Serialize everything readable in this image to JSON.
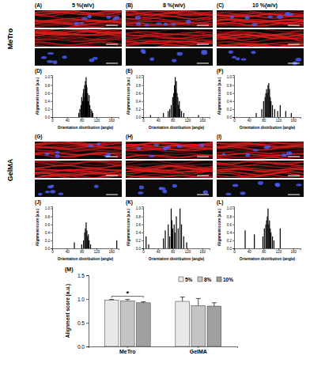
{
  "figure": {
    "column_titles": [
      "5 %(w/v)",
      "8 %(w/v)",
      "10 %(w/v)"
    ],
    "rows": [
      {
        "label": "MeTro",
        "panels": [
          "(A)",
          "(B)",
          "(C)"
        ]
      },
      {
        "label": "GelMA",
        "panels": [
          "(G)",
          "(H)",
          "(I)"
        ]
      }
    ]
  },
  "chart_data": [
    {
      "type": "bar",
      "title": "(D)",
      "xlabel": "Orientation distribution (angle)",
      "ylabel": "Alignment score (a.u.)",
      "color": "#000000",
      "x": [
        72,
        75,
        78,
        80,
        82,
        84,
        85,
        86,
        88,
        89,
        90,
        91,
        92,
        93,
        94,
        95,
        96,
        98,
        100,
        102,
        105,
        108,
        110
      ],
      "values": [
        0.1,
        0.2,
        0.3,
        0.5,
        0.4,
        0.6,
        0.7,
        0.5,
        0.8,
        0.6,
        0.9,
        0.7,
        1.0,
        0.8,
        0.75,
        0.5,
        0.6,
        0.4,
        0.55,
        0.3,
        0.2,
        0.15,
        0.1
      ],
      "xlim": [
        0,
        180
      ],
      "xticks": [
        0,
        40,
        80,
        120,
        160
      ],
      "ylim": [
        0,
        1.05
      ],
      "yticks": [
        {
          "value": 0,
          "label": "0.0"
        },
        0.2,
        0.4,
        0.6,
        0.8,
        {
          "value": 1,
          "label": "1.0"
        }
      ]
    },
    {
      "type": "bar",
      "title": "(E)",
      "xlabel": "Orientation distribution (angle)",
      "ylabel": "Alignment score (a.u.)",
      "color": "#000000",
      "x": [
        20,
        55,
        68,
        72,
        76,
        80,
        83,
        85,
        87,
        88,
        90,
        92,
        94,
        96,
        98,
        100,
        104,
        110,
        150
      ],
      "values": [
        0.05,
        0.1,
        0.15,
        0.2,
        0.3,
        0.5,
        0.6,
        0.8,
        1.0,
        0.7,
        0.9,
        0.6,
        0.5,
        0.3,
        0.4,
        0.2,
        0.15,
        0.1,
        0.05
      ],
      "xlim": [
        0,
        180
      ],
      "xticks": [
        0,
        40,
        80,
        120,
        160
      ],
      "ylim": [
        0,
        1.05
      ],
      "yticks": [
        {
          "value": 0,
          "label": "0.0"
        },
        0.2,
        0.4,
        0.6,
        0.8,
        {
          "value": 1,
          "label": "1.0"
        }
      ]
    },
    {
      "type": "bar",
      "title": "(F)",
      "xlabel": "Orientation distribution (angle)",
      "ylabel": "Alignment score (a.u.)",
      "color": "#000000",
      "x": [
        60,
        75,
        80,
        84,
        86,
        88,
        90,
        92,
        94,
        96,
        98,
        100,
        104,
        110,
        118,
        125,
        140,
        155
      ],
      "values": [
        0.1,
        0.2,
        0.4,
        0.5,
        0.6,
        0.7,
        0.6,
        0.8,
        0.85,
        0.7,
        0.5,
        0.4,
        0.3,
        0.2,
        0.15,
        0.3,
        0.15,
        0.1
      ],
      "xlim": [
        0,
        180
      ],
      "xticks": [
        0,
        40,
        80,
        120,
        160
      ],
      "ylim": [
        0,
        1.05
      ],
      "yticks": [
        {
          "value": 0,
          "label": "0.0"
        },
        0.2,
        0.4,
        0.6,
        0.8,
        {
          "value": 1,
          "label": "1.0"
        }
      ]
    },
    {
      "type": "bar",
      "title": "(J)",
      "xlabel": "Orientation distribution (angle)",
      "ylabel": "Alignment score (a.u.)",
      "color": "#000000",
      "x": [
        60,
        80,
        85,
        88,
        90,
        92,
        94,
        96,
        98,
        100,
        104,
        175
      ],
      "values": [
        0.15,
        0.1,
        0.2,
        0.4,
        0.5,
        0.65,
        0.45,
        0.3,
        0.35,
        0.2,
        0.1,
        0.2
      ],
      "xlim": [
        0,
        180
      ],
      "xticks": [
        0,
        40,
        80,
        120,
        160
      ],
      "ylim": [
        0,
        1.05
      ],
      "yticks": [
        {
          "value": 0,
          "label": "0.0"
        },
        0.2,
        0.4,
        0.6,
        0.8,
        {
          "value": 1,
          "label": "1.0"
        }
      ]
    },
    {
      "type": "bar",
      "title": "(K)",
      "xlabel": "Orientation distribution (angle)",
      "ylabel": "Alignment score (a.u.)",
      "color": "#000000",
      "x": [
        8,
        15,
        55,
        60,
        68,
        72,
        76,
        78,
        80,
        84,
        86,
        90,
        95,
        100,
        104,
        110,
        118
      ],
      "values": [
        0.3,
        0.1,
        0.25,
        0.45,
        0.6,
        0.3,
        1.0,
        0.7,
        0.5,
        0.6,
        0.4,
        0.8,
        0.5,
        1.0,
        0.6,
        0.3,
        0.15
      ],
      "xlim": [
        0,
        180
      ],
      "xticks": [
        0,
        40,
        80,
        120,
        160
      ],
      "ylim": [
        0,
        1.05
      ],
      "yticks": [
        {
          "value": 0,
          "label": "0.0"
        },
        0.2,
        0.4,
        0.6,
        0.8,
        {
          "value": 1,
          "label": "1.0"
        }
      ]
    },
    {
      "type": "bar",
      "title": "(L)",
      "xlabel": "Orientation distribution (angle)",
      "ylabel": "Alignment score (a.u.)",
      "color": "#000000",
      "x": [
        30,
        55,
        78,
        82,
        86,
        88,
        90,
        92,
        94,
        96,
        98,
        100,
        104,
        108,
        125
      ],
      "values": [
        0.45,
        0.35,
        0.3,
        0.5,
        0.6,
        0.7,
        0.8,
        1.0,
        0.6,
        0.7,
        0.5,
        0.4,
        0.3,
        0.2,
        0.5
      ],
      "xlim": [
        0,
        180
      ],
      "xticks": [
        0,
        40,
        80,
        120,
        160
      ],
      "ylim": [
        0,
        1.05
      ],
      "yticks": [
        {
          "value": 0,
          "label": "0.0"
        },
        0.2,
        0.4,
        0.6,
        0.8,
        {
          "value": 1,
          "label": "1.0"
        }
      ]
    },
    {
      "type": "bar",
      "title": "(M)",
      "ylabel": "Alignment score (a.u.)",
      "categories": [
        "MeTro",
        "GelMA"
      ],
      "series": [
        {
          "name": "5%",
          "color": "#e8e8e8",
          "values": [
            0.98,
            0.95
          ],
          "error": [
            0.01,
            0.09
          ]
        },
        {
          "name": "8%",
          "color": "#c4c4c4",
          "values": [
            0.96,
            0.86
          ],
          "error": [
            0.03,
            0.15
          ]
        },
        {
          "name": "10%",
          "color": "#a0a0a0",
          "values": [
            0.92,
            0.85
          ],
          "error": [
            0.02,
            0.07
          ]
        }
      ],
      "ylim": [
        0,
        1.5
      ],
      "yticks": [
        {
          "value": 0,
          "label": "0.0"
        },
        0.5,
        {
          "value": 1,
          "label": "1.0"
        },
        1.5
      ],
      "legend": "upper right",
      "annotations": [
        {
          "text": "*"
        }
      ]
    }
  ]
}
